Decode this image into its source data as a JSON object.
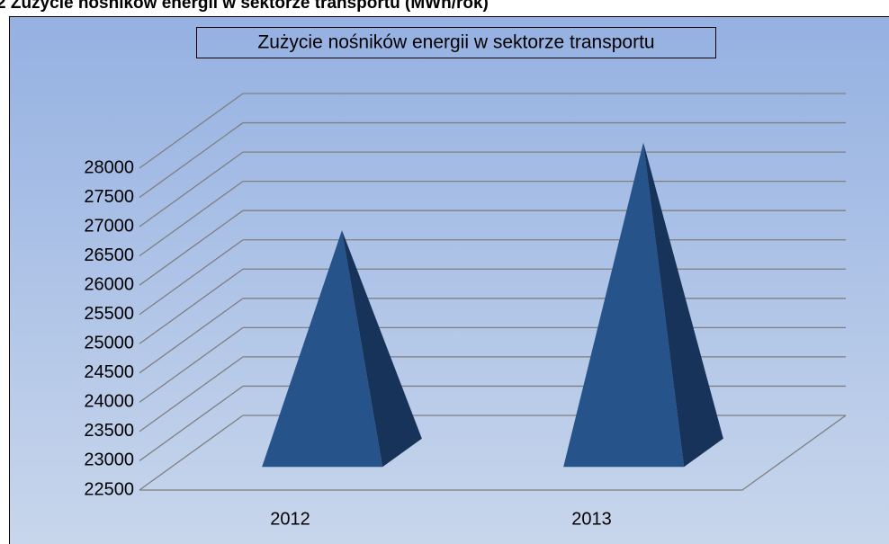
{
  "chart_data": {
    "type": "pyramid3d",
    "title": "2 Zużycie nośników energii w sektorze transportu (MWh/rok)",
    "subtitle": "Zużycie nośników energii w sektorze transportu",
    "categories": [
      "2012",
      "2013"
    ],
    "values": [
      26300,
      27800
    ],
    "color": "#265389",
    "ylim": [
      22500,
      28000
    ],
    "yticks": [
      22500,
      23000,
      23500,
      24000,
      24500,
      25000,
      25500,
      26000,
      26500,
      27000,
      27500,
      28000
    ],
    "grid": true
  }
}
